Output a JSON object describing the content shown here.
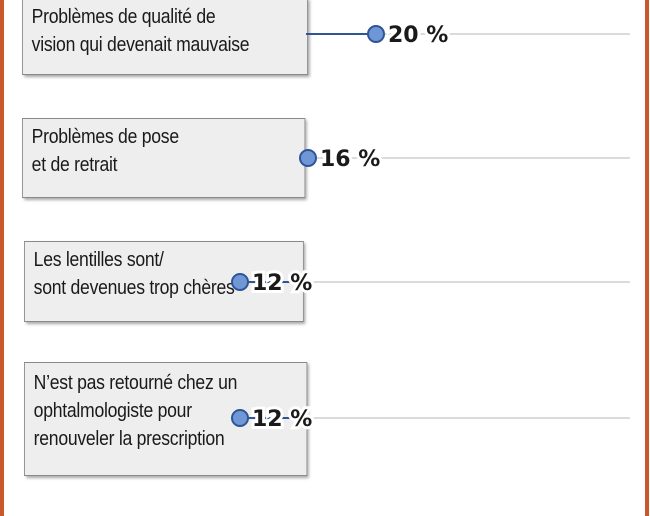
{
  "chart_data": {
    "type": "scatter",
    "categories": [
      [
        "Problèmes de qualité de",
        "vision qui devenait mauvaise"
      ],
      [
        "Problèmes de pose",
        "et de retrait"
      ],
      [
        "Les lentilles sont/",
        "sont devenues trop chères"
      ],
      [
        "N’est pas retourné chez un",
        "ophtalmologiste pour",
        "renouveler la prescription"
      ]
    ],
    "values": [
      20,
      16,
      12,
      12
    ],
    "value_labels": [
      "20 %",
      "16 %",
      "12 %",
      "12 %"
    ],
    "unit": "%",
    "title": "",
    "xlabel": "",
    "ylabel": "",
    "xlim": [
      0,
      20
    ],
    "grid": true,
    "legend": "none"
  },
  "colors": {
    "marker_fill": "#6f97d6",
    "marker_stroke": "#2f5597",
    "connector": "#2f5597",
    "gridline": "#cfcfcf",
    "frame": "#c9582c"
  }
}
